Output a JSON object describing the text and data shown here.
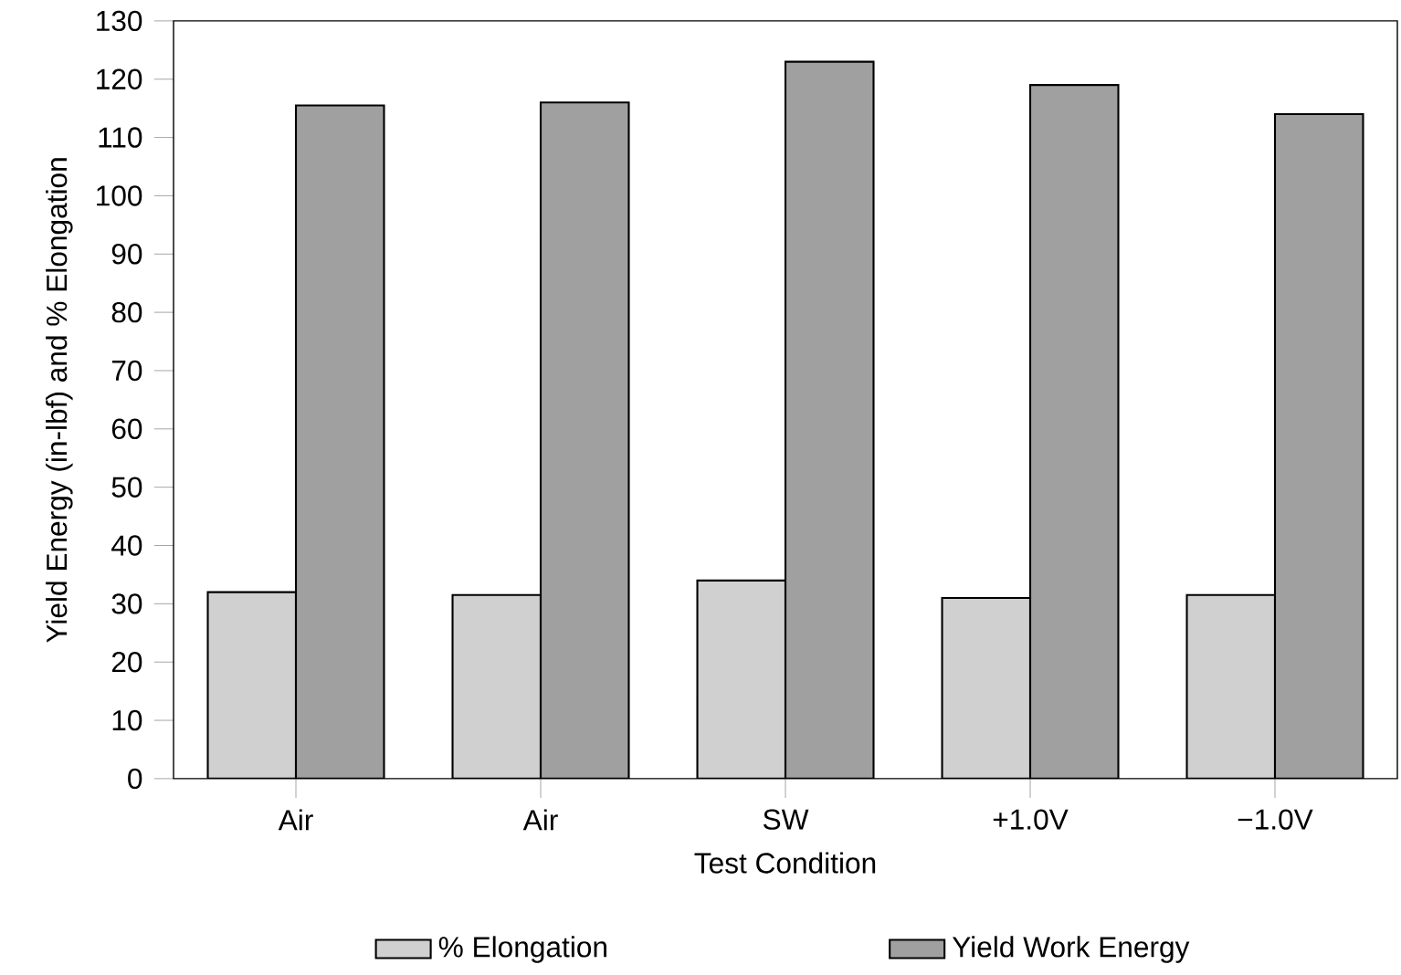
{
  "chart_data": {
    "type": "bar",
    "xlabel": "Test Condition",
    "ylabel": "Yield Energy (in-lbf) and % Elongation",
    "categories": [
      "Air",
      "Air",
      "SW",
      "+1.0V",
      "−1.0V"
    ],
    "series": [
      {
        "name": "% Elongation",
        "color": "#d0d0d0",
        "values": [
          32,
          31.5,
          34,
          31,
          31.5
        ]
      },
      {
        "name": "Yield Work Energy",
        "color": "#a0a0a0",
        "values": [
          115.5,
          116,
          123,
          119,
          114
        ]
      }
    ],
    "ylim": [
      0,
      130
    ],
    "yticks": [
      0,
      10,
      20,
      30,
      40,
      50,
      60,
      70,
      80,
      90,
      100,
      110,
      120,
      130
    ],
    "legend": "bottom"
  }
}
